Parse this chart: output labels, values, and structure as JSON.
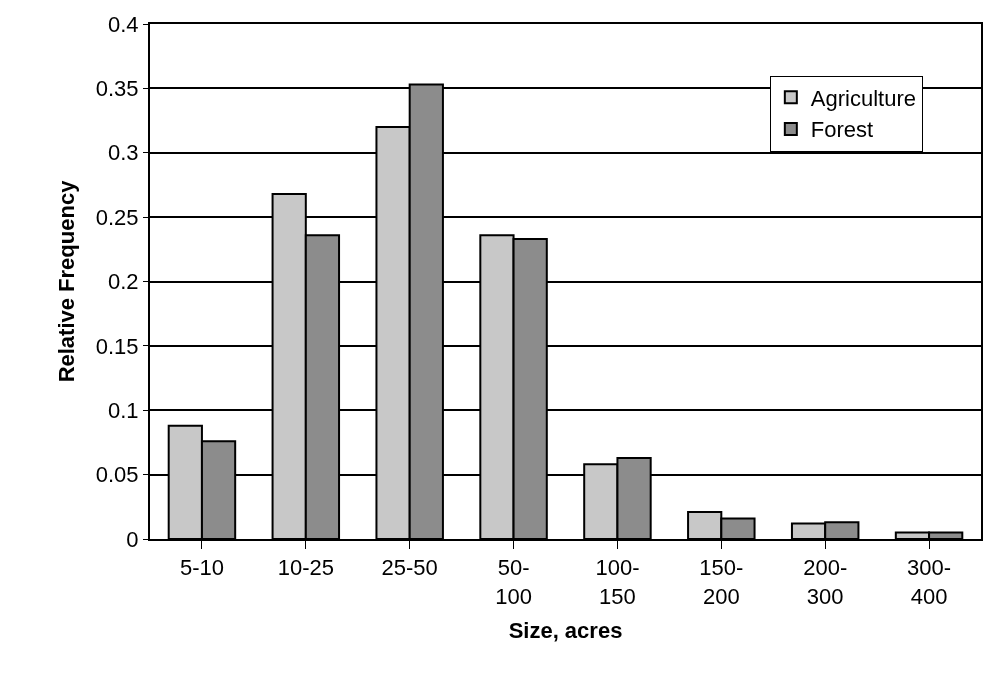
{
  "chart_data": {
    "type": "bar",
    "xlabel": "Size, acres",
    "ylabel": "Relative Frequency",
    "categories": [
      "5-10",
      "10-25",
      "25-50",
      "50-100",
      "100-150",
      "150-200",
      "200-300",
      "300-400"
    ],
    "series": [
      {
        "name": "Agriculture",
        "color": "#c8c8c8",
        "values": [
          0.088,
          0.268,
          0.32,
          0.236,
          0.058,
          0.021,
          0.012,
          0.005
        ]
      },
      {
        "name": "Forest",
        "color": "#8c8c8c",
        "values": [
          0.076,
          0.236,
          0.353,
          0.233,
          0.063,
          0.016,
          0.013,
          0.005
        ]
      }
    ],
    "ylim": [
      0,
      0.4
    ],
    "yticks": [
      0,
      0.05,
      0.1,
      0.15,
      0.2,
      0.25,
      0.3,
      0.35,
      0.4
    ],
    "grid": "y",
    "legend": "top right"
  }
}
